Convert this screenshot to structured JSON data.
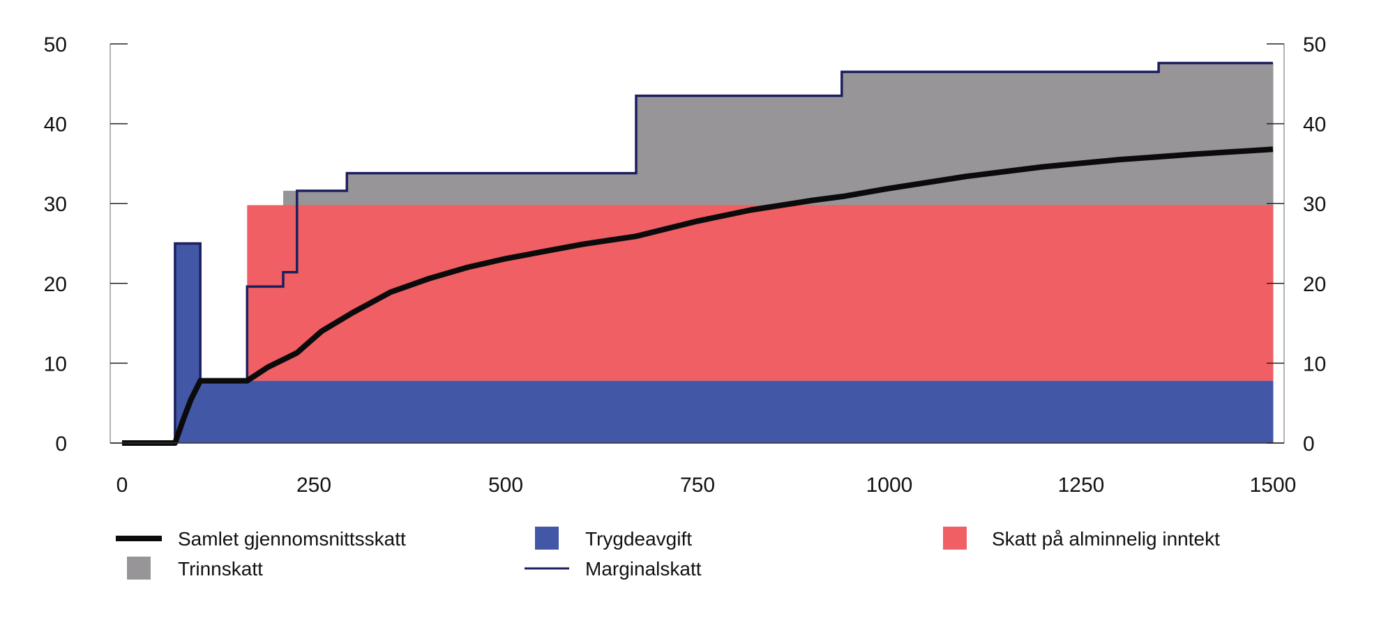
{
  "chart_data": {
    "type": "area",
    "title": "",
    "xlabel": "",
    "ylabel": "",
    "xlim": [
      0,
      1500
    ],
    "ylim": [
      0,
      50
    ],
    "x_ticks": [
      "0",
      "250",
      "500",
      "750",
      "1000",
      "1250",
      "1500"
    ],
    "y_ticks": [
      "0",
      "10",
      "20",
      "30",
      "40",
      "50"
    ],
    "y_axis_both_sides": true,
    "grid": false,
    "legend_placement": "bottom",
    "colors": {
      "trygdeavgift": "#4257a6",
      "skatt_alminnelig": "#f05f64",
      "trinnskatt": "#979598",
      "marginalskatt": "#1b1f5e",
      "gjennomsnittsskatt": "#0b0b0b"
    },
    "series": [
      {
        "name": "Trygdeavgift",
        "kind": "stacked-step-area",
        "steps": [
          [
            0,
            0
          ],
          [
            69,
            25
          ],
          [
            102,
            7.8
          ],
          [
            1500,
            7.8
          ]
        ]
      },
      {
        "name": "Skatt på alminnelig inntekt",
        "kind": "stacked-step-area",
        "steps": [
          [
            0,
            0
          ],
          [
            163,
            22
          ],
          [
            1500,
            22
          ]
        ]
      },
      {
        "name": "Trinnskatt",
        "kind": "stacked-step-area",
        "steps": [
          [
            0,
            0
          ],
          [
            210,
            1.8
          ],
          [
            228,
            1.8
          ],
          [
            293,
            4.0
          ],
          [
            670,
            13.7
          ],
          [
            938,
            16.7
          ],
          [
            1351,
            17.8
          ],
          [
            1500,
            17.8
          ]
        ]
      },
      {
        "name": "Marginalskatt",
        "kind": "step-line",
        "steps": [
          [
            0,
            0
          ],
          [
            69,
            25
          ],
          [
            102,
            7.8
          ],
          [
            163,
            19.6
          ],
          [
            210,
            21.4
          ],
          [
            228,
            31.6
          ],
          [
            293,
            33.8
          ],
          [
            670,
            43.5
          ],
          [
            938,
            46.5
          ],
          [
            1351,
            47.6
          ],
          [
            1500,
            47.6
          ]
        ]
      },
      {
        "name": "Samlet gjennomsnittsskatt",
        "kind": "line",
        "points": [
          [
            0,
            0
          ],
          [
            69,
            0
          ],
          [
            80,
            3
          ],
          [
            90,
            5.5
          ],
          [
            102,
            7.8
          ],
          [
            163,
            7.8
          ],
          [
            190,
            9.5
          ],
          [
            228,
            11.3
          ],
          [
            260,
            14
          ],
          [
            300,
            16.3
          ],
          [
            350,
            18.9
          ],
          [
            400,
            20.6
          ],
          [
            450,
            22
          ],
          [
            500,
            23.1
          ],
          [
            550,
            24
          ],
          [
            600,
            24.9
          ],
          [
            670,
            25.9
          ],
          [
            750,
            27.8
          ],
          [
            820,
            29.2
          ],
          [
            900,
            30.4
          ],
          [
            940,
            30.9
          ],
          [
            1000,
            31.9
          ],
          [
            1100,
            33.4
          ],
          [
            1200,
            34.6
          ],
          [
            1300,
            35.5
          ],
          [
            1400,
            36.2
          ],
          [
            1500,
            36.8
          ]
        ]
      }
    ]
  },
  "legend": [
    {
      "label": "Samlet gjennomsnittsskatt",
      "type": "thick-line",
      "color": "#0b0b0b"
    },
    {
      "label": "Trygdeavgift",
      "type": "swatch",
      "color": "#4257a6"
    },
    {
      "label": "Skatt på alminnelig inntekt",
      "type": "swatch",
      "color": "#f05f64"
    },
    {
      "label": "Trinnskatt",
      "type": "swatch",
      "color": "#979598"
    },
    {
      "label": "Marginalskatt",
      "type": "thin-line",
      "color": "#1b1f5e"
    }
  ]
}
